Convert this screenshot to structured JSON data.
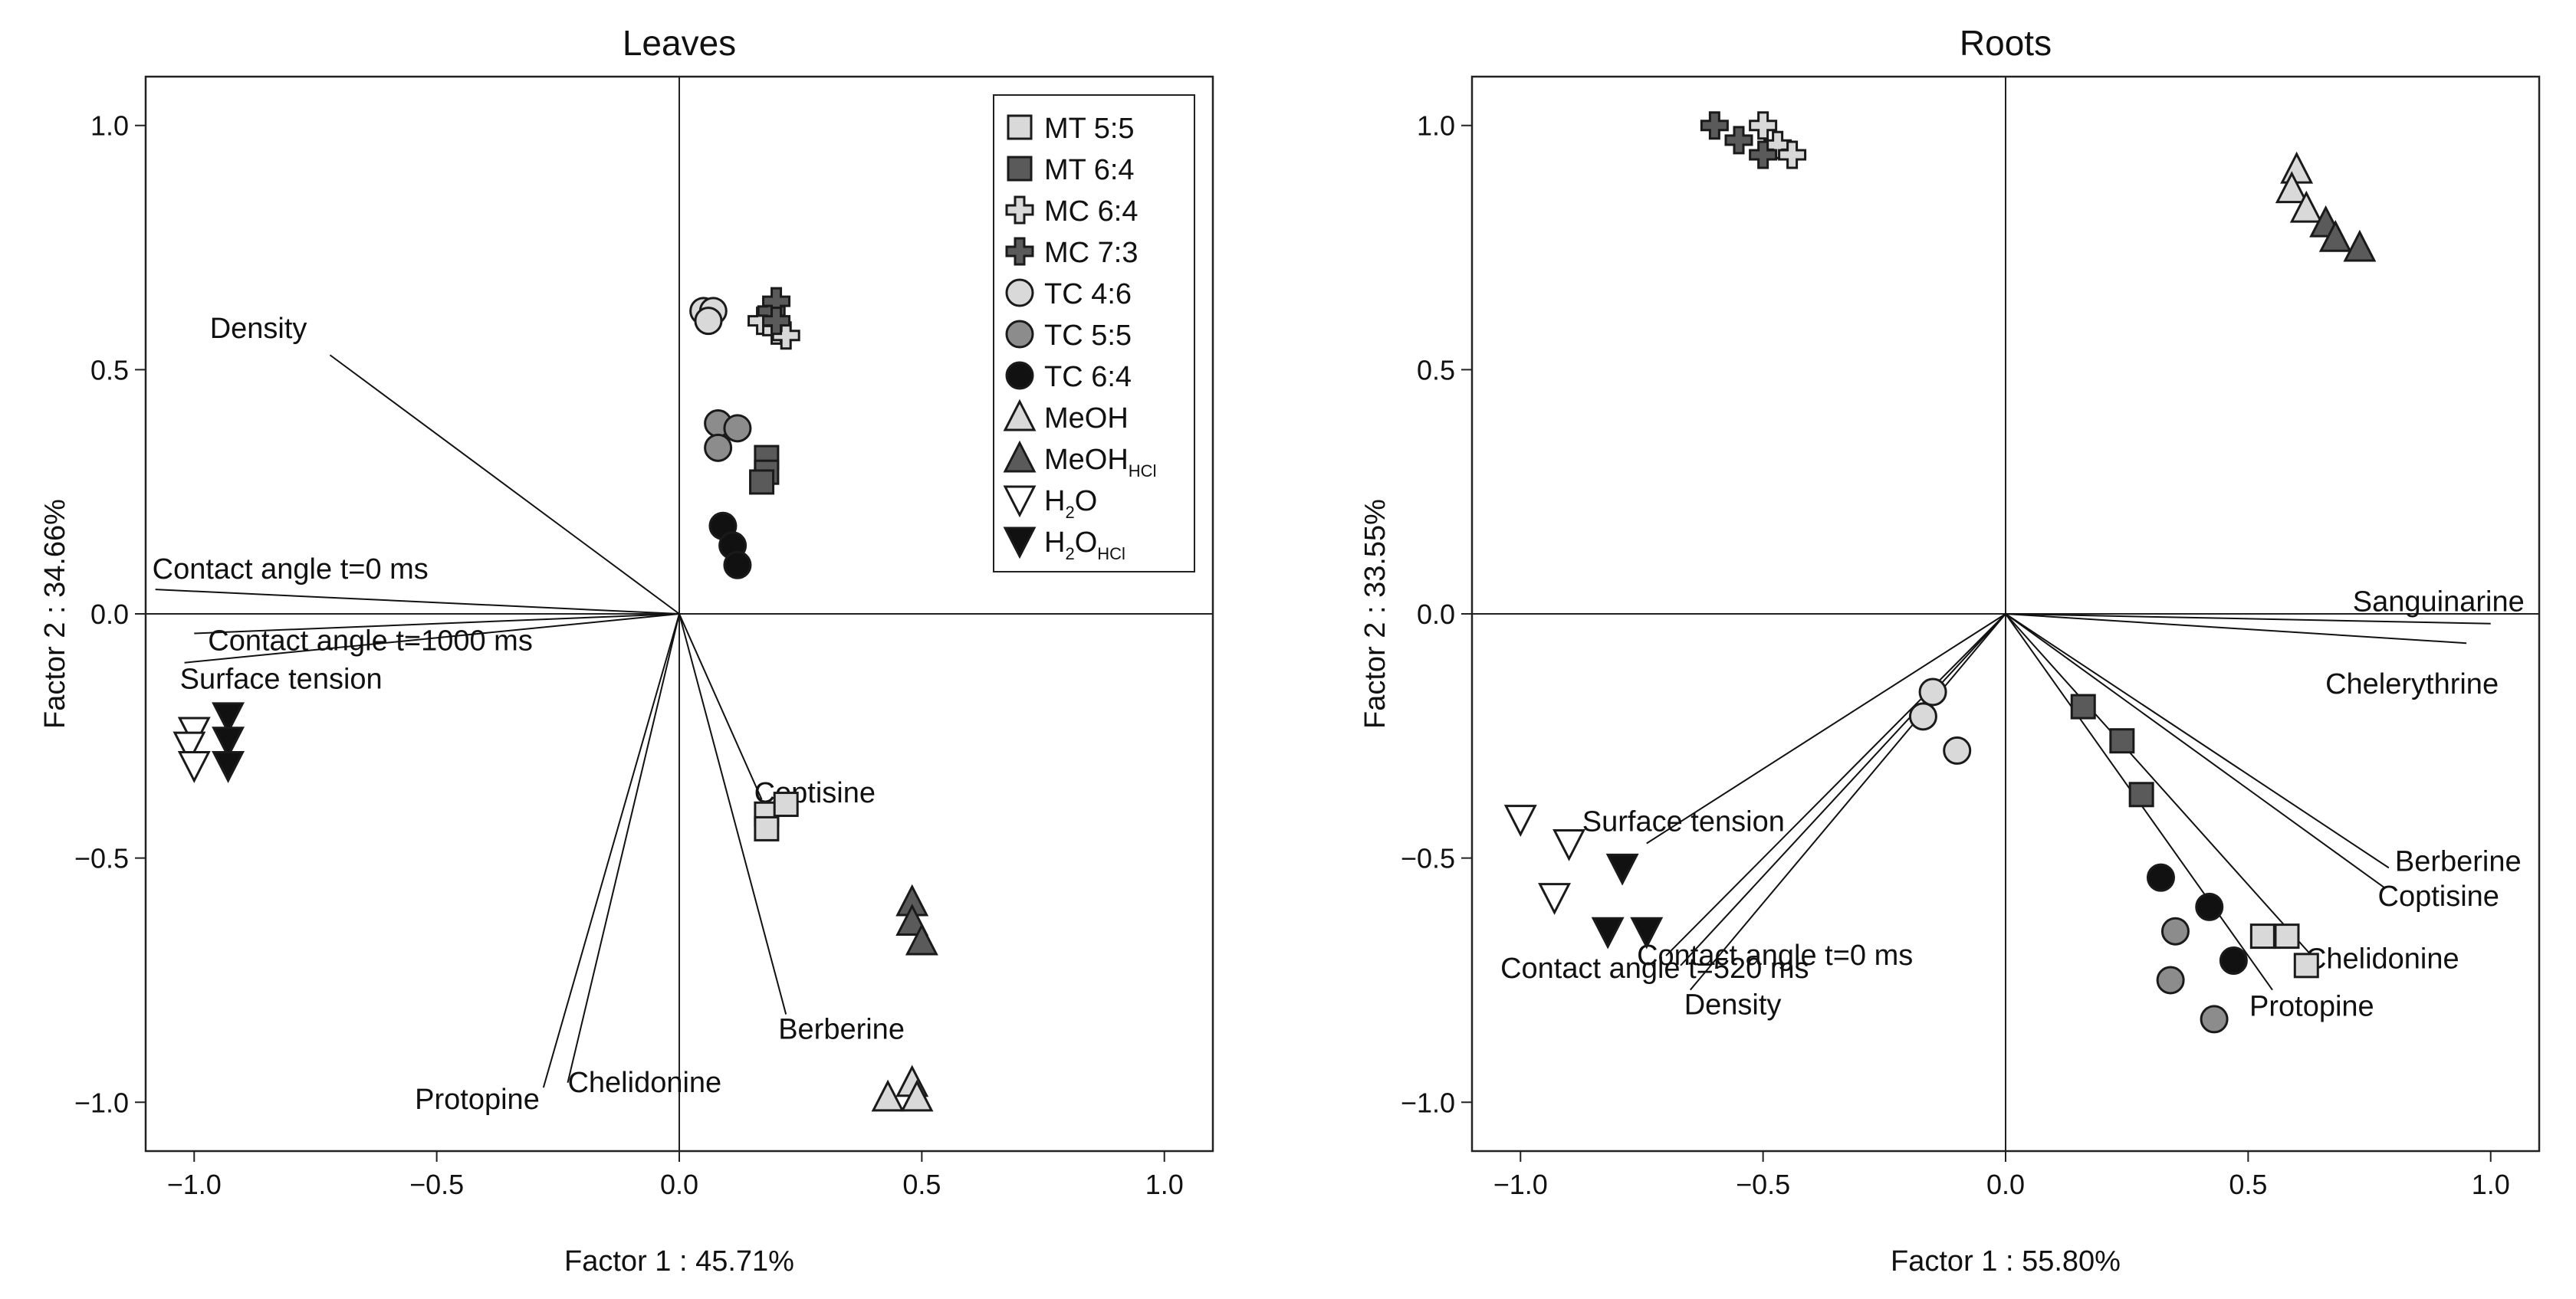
{
  "colors": {
    "lightgray": "#d9d9d9",
    "midgray": "#8c8c8c",
    "darkgray": "#5a5a5a",
    "black": "#111111",
    "white": "#ffffff",
    "axis": "#222222"
  },
  "legend": {
    "items": [
      {
        "key": "MT55",
        "marker": "square-icon",
        "fill": "lightgray",
        "label": "MT 5:5"
      },
      {
        "key": "MT64",
        "marker": "square-icon",
        "fill": "darkgray",
        "label": "MT 6:4"
      },
      {
        "key": "MC64",
        "marker": "plus-icon",
        "fill": "lightgray",
        "label": "MC 6:4"
      },
      {
        "key": "MC73",
        "marker": "plus-icon",
        "fill": "darkgray",
        "label": "MC 7:3"
      },
      {
        "key": "TC46",
        "marker": "circle-icon",
        "fill": "lightgray",
        "label": "TC 4:6"
      },
      {
        "key": "TC55",
        "marker": "circle-icon",
        "fill": "midgray",
        "label": "TC 5:5"
      },
      {
        "key": "TC64",
        "marker": "circle-icon",
        "fill": "black",
        "label": "TC 6:4"
      },
      {
        "key": "MeOH",
        "marker": "triangle-up-icon",
        "fill": "lightgray",
        "label": "MeOH",
        "sub": ""
      },
      {
        "key": "MeOHHCl",
        "marker": "triangle-up-icon",
        "fill": "darkgray",
        "label": "MeOH",
        "sub": "HCl"
      },
      {
        "key": "H2O",
        "marker": "triangle-down-icon",
        "fill": "white",
        "label": "H",
        "sub": "2",
        "label2": "O",
        "sub2": ""
      },
      {
        "key": "H2OHCl",
        "marker": "triangle-down-icon",
        "fill": "black",
        "label": "H",
        "sub": "2",
        "label2": "O",
        "sub2": "HCl"
      }
    ]
  },
  "chart_data": [
    {
      "type": "scatter",
      "title": "Leaves",
      "xlabel": "Factor 1 : 45.71%",
      "ylabel": "Factor 2 : 34.66%",
      "xlim": [
        -1.1,
        1.1
      ],
      "ylim": [
        -1.1,
        1.1
      ],
      "xticks": [
        -1.0,
        -0.5,
        0.0,
        0.5,
        1.0
      ],
      "yticks": [
        -1.0,
        -0.5,
        0.0,
        0.5,
        1.0
      ],
      "tick_labels": [
        "−1.0",
        "−0.5",
        "0.0",
        "0.5",
        "1.0"
      ],
      "vectors": [
        {
          "label": "Density",
          "x": -0.72,
          "y": 0.53
        },
        {
          "label": "Contact angle t=0 ms",
          "x": -1.08,
          "y": 0.05
        },
        {
          "label": "Contact angle t=1000 ms",
          "x": -1.0,
          "y": -0.04
        },
        {
          "label": "Surface tension",
          "x": -1.02,
          "y": -0.1
        },
        {
          "label": "Coptisine",
          "x": 0.17,
          "y": -0.38
        },
        {
          "label": "Berberine",
          "x": 0.22,
          "y": -0.82
        },
        {
          "label": "Chelidonine",
          "x": -0.23,
          "y": -0.96
        },
        {
          "label": "Protopine",
          "x": -0.28,
          "y": -0.97
        }
      ],
      "series": [
        {
          "name": "MT 5:5",
          "points": [
            [
              0.18,
              -0.41
            ],
            [
              0.22,
              -0.39
            ],
            [
              0.18,
              -0.44
            ]
          ]
        },
        {
          "name": "MT 6:4",
          "points": [
            [
              0.18,
              0.32
            ],
            [
              0.18,
              0.29
            ],
            [
              0.17,
              0.27
            ]
          ]
        },
        {
          "name": "MC 6:4",
          "points": [
            [
              0.17,
              0.6
            ],
            [
              0.2,
              0.58
            ],
            [
              0.22,
              0.57
            ]
          ]
        },
        {
          "name": "MC 7:3",
          "points": [
            [
              0.19,
              0.62
            ],
            [
              0.2,
              0.64
            ],
            [
              0.2,
              0.6
            ]
          ]
        },
        {
          "name": "TC 4:6",
          "points": [
            [
              0.05,
              0.62
            ],
            [
              0.07,
              0.62
            ],
            [
              0.06,
              0.6
            ]
          ]
        },
        {
          "name": "TC 5:5",
          "points": [
            [
              0.08,
              0.39
            ],
            [
              0.12,
              0.38
            ],
            [
              0.08,
              0.34
            ]
          ]
        },
        {
          "name": "TC 6:4",
          "points": [
            [
              0.09,
              0.18
            ],
            [
              0.11,
              0.14
            ],
            [
              0.12,
              0.1
            ]
          ]
        },
        {
          "name": "MeOH",
          "points": [
            [
              0.43,
              -0.99
            ],
            [
              0.48,
              -0.96
            ],
            [
              0.49,
              -0.99
            ]
          ]
        },
        {
          "name": "MeOHHCl",
          "points": [
            [
              0.48,
              -0.59
            ],
            [
              0.48,
              -0.63
            ],
            [
              0.5,
              -0.67
            ]
          ]
        },
        {
          "name": "H2O",
          "points": [
            [
              -1.0,
              -0.24
            ],
            [
              -1.01,
              -0.27
            ],
            [
              -1.0,
              -0.31
            ]
          ]
        },
        {
          "name": "H2OHCl",
          "points": [
            [
              -0.93,
              -0.21
            ],
            [
              -0.93,
              -0.26
            ],
            [
              -0.93,
              -0.31
            ]
          ]
        }
      ]
    },
    {
      "type": "scatter",
      "title": "Roots",
      "xlabel": "Factor 1 : 55.80%",
      "ylabel": "Factor 2 : 33.55%",
      "xlim": [
        -1.1,
        1.1
      ],
      "ylim": [
        -1.1,
        1.1
      ],
      "xticks": [
        -1.0,
        -0.5,
        0.0,
        0.5,
        1.0
      ],
      "yticks": [
        -1.0,
        -0.5,
        0.0,
        0.5,
        1.0
      ],
      "tick_labels": [
        "−1.0",
        "−0.5",
        "0.0",
        "0.5",
        "1.0"
      ],
      "vectors": [
        {
          "label": "Sanguinarine",
          "x": 1.0,
          "y": -0.02
        },
        {
          "label": "Chelerythrine",
          "x": 0.95,
          "y": -0.06
        },
        {
          "label": "Berberine",
          "x": 0.79,
          "y": -0.52
        },
        {
          "label": "Coptisine",
          "x": 0.78,
          "y": -0.56
        },
        {
          "label": "Chelidonine",
          "x": 0.64,
          "y": -0.71
        },
        {
          "label": "Protopine",
          "x": 0.55,
          "y": -0.77
        },
        {
          "label": "Surface tension",
          "x": -0.74,
          "y": -0.47
        },
        {
          "label": "Contact angle t=0 ms",
          "x": -0.7,
          "y": -0.7
        },
        {
          "label": "Contact angle t=520 ms",
          "x": -0.67,
          "y": -0.72
        },
        {
          "label": "Density",
          "x": -0.65,
          "y": -0.77
        }
      ],
      "series": [
        {
          "name": "MT 5:5",
          "points": [
            [
              0.53,
              -0.66
            ],
            [
              0.58,
              -0.66
            ],
            [
              0.62,
              -0.72
            ]
          ]
        },
        {
          "name": "MT 6:4",
          "points": [
            [
              0.16,
              -0.19
            ],
            [
              0.24,
              -0.26
            ],
            [
              0.28,
              -0.37
            ]
          ]
        },
        {
          "name": "MC 6:4",
          "points": [
            [
              -0.5,
              1.0
            ],
            [
              -0.47,
              0.96
            ],
            [
              -0.44,
              0.94
            ]
          ]
        },
        {
          "name": "MC 7:3",
          "points": [
            [
              -0.6,
              1.0
            ],
            [
              -0.55,
              0.97
            ],
            [
              -0.5,
              0.94
            ]
          ]
        },
        {
          "name": "TC 4:6",
          "points": [
            [
              -0.15,
              -0.16
            ],
            [
              -0.17,
              -0.21
            ],
            [
              -0.1,
              -0.28
            ]
          ]
        },
        {
          "name": "TC 5:5",
          "points": [
            [
              0.35,
              -0.65
            ],
            [
              0.34,
              -0.75
            ],
            [
              0.43,
              -0.83
            ]
          ]
        },
        {
          "name": "TC 6:4",
          "points": [
            [
              0.32,
              -0.54
            ],
            [
              0.42,
              -0.6
            ],
            [
              0.47,
              -0.71
            ]
          ]
        },
        {
          "name": "MeOH",
          "points": [
            [
              0.6,
              0.91
            ],
            [
              0.59,
              0.87
            ],
            [
              0.62,
              0.83
            ]
          ]
        },
        {
          "name": "MeOHHCl",
          "points": [
            [
              0.66,
              0.8
            ],
            [
              0.68,
              0.77
            ],
            [
              0.73,
              0.75
            ]
          ]
        },
        {
          "name": "H2O",
          "points": [
            [
              -1.0,
              -0.42
            ],
            [
              -0.9,
              -0.47
            ],
            [
              -0.93,
              -0.58
            ]
          ]
        },
        {
          "name": "H2OHCl",
          "points": [
            [
              -0.79,
              -0.52
            ],
            [
              -0.82,
              -0.65
            ],
            [
              -0.74,
              -0.65
            ]
          ]
        }
      ]
    }
  ]
}
